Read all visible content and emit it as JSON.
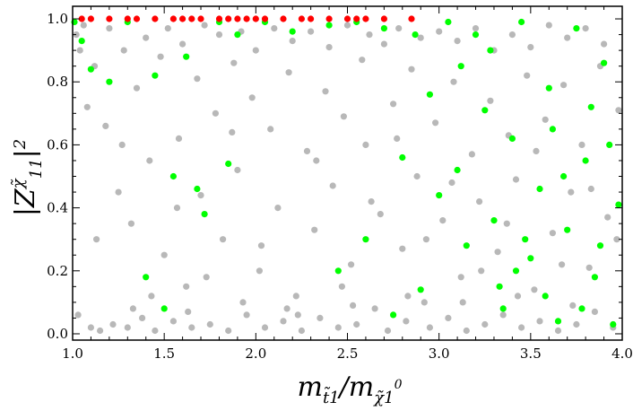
{
  "chart_data": {
    "type": "scatter",
    "xlabel": "m_{t̃1}/m_{χ̃1^0}",
    "ylabel": "|Z^{χ̃}_{11}|^2",
    "xlim": [
      1.0,
      4.0
    ],
    "ylim": [
      -0.02,
      1.04
    ],
    "xticks": [
      "1.0",
      "1.5",
      "2.0",
      "2.5",
      "3.0",
      "3.5",
      "4.0"
    ],
    "yticks": [
      "0.0",
      "0.2",
      "0.4",
      "0.6",
      "0.8",
      "1.0"
    ],
    "grid": false,
    "legend": "none",
    "series": [
      {
        "color": "#b8b8b8",
        "points": [
          [
            1.02,
            0.95
          ],
          [
            1.04,
            0.9
          ],
          [
            1.06,
            0.98
          ],
          [
            1.08,
            0.72
          ],
          [
            1.1,
            0.02
          ],
          [
            1.12,
            0.85
          ],
          [
            1.15,
            0.01
          ],
          [
            1.18,
            0.66
          ],
          [
            1.2,
            0.97
          ],
          [
            1.22,
            0.03
          ],
          [
            1.25,
            0.45
          ],
          [
            1.28,
            0.9
          ],
          [
            1.3,
            0.02
          ],
          [
            1.32,
            0.35
          ],
          [
            1.35,
            0.78
          ],
          [
            1.38,
            0.05
          ],
          [
            1.4,
            0.94
          ],
          [
            1.42,
            0.55
          ],
          [
            1.45,
            0.01
          ],
          [
            1.48,
            0.88
          ],
          [
            1.5,
            0.25
          ],
          [
            1.52,
            0.97
          ],
          [
            1.55,
            0.04
          ],
          [
            1.58,
            0.62
          ],
          [
            1.6,
            0.92
          ],
          [
            1.62,
            0.15
          ],
          [
            1.65,
            0.02
          ],
          [
            1.68,
            0.81
          ],
          [
            1.7,
            0.44
          ],
          [
            1.72,
            0.98
          ],
          [
            1.75,
            0.03
          ],
          [
            1.78,
            0.7
          ],
          [
            1.8,
            0.95
          ],
          [
            1.82,
            0.3
          ],
          [
            1.85,
            0.01
          ],
          [
            1.88,
            0.86
          ],
          [
            1.9,
            0.52
          ],
          [
            1.92,
            0.96
          ],
          [
            1.95,
            0.06
          ],
          [
            1.98,
            0.75
          ],
          [
            2.0,
            0.9
          ],
          [
            2.02,
            0.2
          ],
          [
            2.05,
            0.02
          ],
          [
            2.08,
            0.65
          ],
          [
            2.1,
            0.97
          ],
          [
            2.12,
            0.4
          ],
          [
            2.15,
            0.04
          ],
          [
            2.18,
            0.83
          ],
          [
            2.2,
            0.93
          ],
          [
            2.22,
            0.12
          ],
          [
            2.25,
            0.01
          ],
          [
            2.28,
            0.58
          ],
          [
            2.3,
            0.96
          ],
          [
            2.32,
            0.33
          ],
          [
            2.35,
            0.05
          ],
          [
            2.38,
            0.77
          ],
          [
            2.4,
            0.91
          ],
          [
            2.42,
            0.47
          ],
          [
            2.45,
            0.02
          ],
          [
            2.48,
            0.69
          ],
          [
            2.5,
            0.98
          ],
          [
            2.52,
            0.22
          ],
          [
            2.55,
            0.03
          ],
          [
            2.58,
            0.87
          ],
          [
            2.6,
            0.6
          ],
          [
            2.62,
            0.95
          ],
          [
            2.65,
            0.08
          ],
          [
            2.68,
            0.38
          ],
          [
            2.7,
            0.92
          ],
          [
            2.72,
            0.01
          ],
          [
            2.75,
            0.73
          ],
          [
            2.78,
            0.97
          ],
          [
            2.8,
            0.27
          ],
          [
            2.82,
            0.04
          ],
          [
            2.85,
            0.84
          ],
          [
            2.88,
            0.5
          ],
          [
            2.9,
            0.94
          ],
          [
            2.92,
            0.1
          ],
          [
            2.95,
            0.02
          ],
          [
            2.98,
            0.67
          ],
          [
            3.0,
            0.96
          ],
          [
            3.02,
            0.36
          ],
          [
            3.05,
            0.05
          ],
          [
            3.08,
            0.8
          ],
          [
            3.1,
            0.93
          ],
          [
            3.12,
            0.18
          ],
          [
            3.15,
            0.01
          ],
          [
            3.18,
            0.57
          ],
          [
            3.2,
            0.97
          ],
          [
            3.22,
            0.42
          ],
          [
            3.25,
            0.03
          ],
          [
            3.28,
            0.74
          ],
          [
            3.3,
            0.9
          ],
          [
            3.32,
            0.26
          ],
          [
            3.35,
            0.06
          ],
          [
            3.38,
            0.63
          ],
          [
            3.4,
            0.95
          ],
          [
            3.42,
            0.49
          ],
          [
            3.45,
            0.02
          ],
          [
            3.48,
            0.82
          ],
          [
            3.5,
            0.91
          ],
          [
            3.52,
            0.14
          ],
          [
            3.55,
            0.04
          ],
          [
            3.58,
            0.68
          ],
          [
            3.6,
            0.98
          ],
          [
            3.62,
            0.32
          ],
          [
            3.65,
            0.01
          ],
          [
            3.68,
            0.79
          ],
          [
            3.7,
            0.94
          ],
          [
            3.72,
            0.45
          ],
          [
            3.75,
            0.03
          ],
          [
            3.78,
            0.6
          ],
          [
            3.8,
            0.97
          ],
          [
            3.82,
            0.21
          ],
          [
            3.85,
            0.07
          ],
          [
            3.88,
            0.85
          ],
          [
            3.9,
            0.92
          ],
          [
            3.92,
            0.37
          ],
          [
            3.95,
            0.02
          ],
          [
            3.98,
            0.71
          ],
          [
            1.13,
            0.3
          ],
          [
            1.27,
            0.6
          ],
          [
            1.43,
            0.12
          ],
          [
            1.57,
            0.4
          ],
          [
            1.73,
            0.18
          ],
          [
            1.87,
            0.64
          ],
          [
            2.03,
            0.28
          ],
          [
            2.17,
            0.08
          ],
          [
            2.33,
            0.55
          ],
          [
            2.47,
            0.15
          ],
          [
            2.63,
            0.42
          ],
          [
            2.77,
            0.62
          ],
          [
            2.93,
            0.3
          ],
          [
            3.07,
            0.48
          ],
          [
            3.23,
            0.2
          ],
          [
            3.37,
            0.35
          ],
          [
            3.53,
            0.58
          ],
          [
            3.67,
            0.22
          ],
          [
            3.83,
            0.46
          ],
          [
            3.97,
            0.3
          ],
          [
            1.03,
            0.06
          ],
          [
            1.33,
            0.08
          ],
          [
            1.63,
            0.07
          ],
          [
            1.93,
            0.1
          ],
          [
            2.23,
            0.06
          ],
          [
            2.53,
            0.09
          ],
          [
            2.83,
            0.12
          ],
          [
            3.13,
            0.1
          ],
          [
            3.43,
            0.12
          ],
          [
            3.73,
            0.09
          ]
        ]
      },
      {
        "color": "#00ff00",
        "points": [
          [
            1.01,
            0.99
          ],
          [
            1.05,
            0.93
          ],
          [
            1.1,
            0.84
          ],
          [
            1.2,
            0.8
          ],
          [
            1.3,
            0.99
          ],
          [
            1.45,
            0.82
          ],
          [
            1.55,
            0.5
          ],
          [
            1.62,
            0.88
          ],
          [
            1.68,
            0.46
          ],
          [
            1.72,
            0.38
          ],
          [
            1.8,
            0.99
          ],
          [
            1.85,
            0.54
          ],
          [
            1.9,
            0.95
          ],
          [
            2.05,
            0.99
          ],
          [
            2.2,
            0.96
          ],
          [
            2.4,
            0.98
          ],
          [
            2.55,
            0.99
          ],
          [
            2.7,
            0.97
          ],
          [
            2.8,
            0.56
          ],
          [
            2.87,
            0.95
          ],
          [
            2.95,
            0.76
          ],
          [
            3.0,
            0.44
          ],
          [
            3.05,
            0.99
          ],
          [
            3.1,
            0.52
          ],
          [
            3.15,
            0.28
          ],
          [
            3.2,
            0.95
          ],
          [
            3.25,
            0.71
          ],
          [
            3.3,
            0.36
          ],
          [
            3.35,
            0.08
          ],
          [
            3.4,
            0.62
          ],
          [
            3.45,
            0.99
          ],
          [
            3.5,
            0.24
          ],
          [
            3.55,
            0.46
          ],
          [
            3.6,
            0.78
          ],
          [
            3.65,
            0.04
          ],
          [
            3.7,
            0.33
          ],
          [
            3.75,
            0.97
          ],
          [
            3.8,
            0.55
          ],
          [
            3.85,
            0.18
          ],
          [
            3.9,
            0.86
          ],
          [
            3.95,
            0.03
          ],
          [
            3.98,
            0.41
          ],
          [
            3.33,
            0.15
          ],
          [
            3.47,
            0.3
          ],
          [
            3.58,
            0.12
          ],
          [
            3.62,
            0.65
          ],
          [
            3.78,
            0.08
          ],
          [
            3.88,
            0.28
          ],
          [
            3.93,
            0.6
          ],
          [
            1.4,
            0.18
          ],
          [
            1.5,
            0.08
          ],
          [
            2.45,
            0.2
          ],
          [
            2.6,
            0.3
          ],
          [
            2.75,
            0.06
          ],
          [
            2.9,
            0.14
          ],
          [
            3.12,
            0.85
          ],
          [
            3.28,
            0.9
          ],
          [
            3.42,
            0.2
          ],
          [
            3.68,
            0.5
          ],
          [
            3.83,
            0.72
          ]
        ]
      },
      {
        "color": "#ff0000",
        "points": [
          [
            1.05,
            1.0
          ],
          [
            1.1,
            1.0
          ],
          [
            1.2,
            1.0
          ],
          [
            1.3,
            1.0
          ],
          [
            1.35,
            1.0
          ],
          [
            1.45,
            1.0
          ],
          [
            1.55,
            1.0
          ],
          [
            1.6,
            1.0
          ],
          [
            1.65,
            1.0
          ],
          [
            1.7,
            1.0
          ],
          [
            1.8,
            1.0
          ],
          [
            1.85,
            1.0
          ],
          [
            1.9,
            1.0
          ],
          [
            1.95,
            1.0
          ],
          [
            2.0,
            1.0
          ],
          [
            2.05,
            1.0
          ],
          [
            2.15,
            1.0
          ],
          [
            2.25,
            1.0
          ],
          [
            2.3,
            1.0
          ],
          [
            2.4,
            1.0
          ],
          [
            2.5,
            1.0
          ],
          [
            2.55,
            1.0
          ],
          [
            2.6,
            1.0
          ],
          [
            2.7,
            1.0
          ],
          [
            2.85,
            1.0
          ]
        ]
      }
    ]
  }
}
